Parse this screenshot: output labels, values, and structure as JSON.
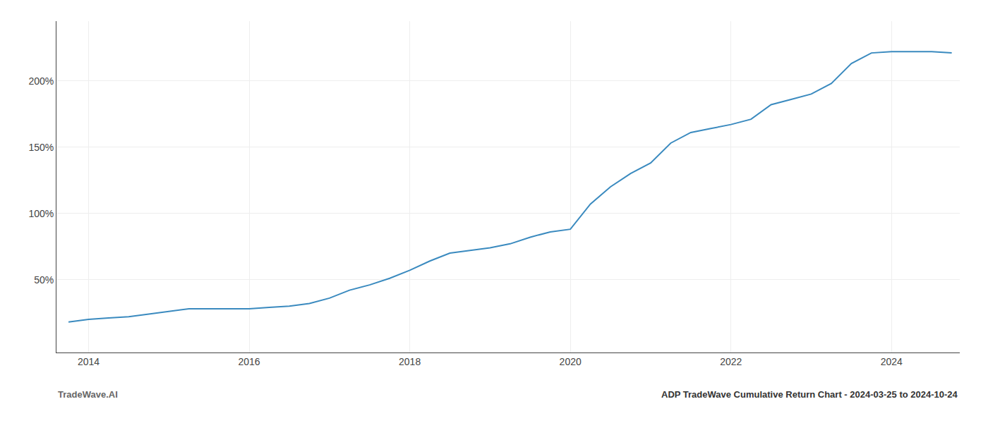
{
  "chart_data": {
    "type": "line",
    "title": "ADP TradeWave Cumulative Return Chart - 2024-03-25 to 2024-10-24",
    "annotations": [
      "TradeWave.AI"
    ],
    "color": "#3a8abf",
    "grid": true,
    "x": [
      2013.75,
      2014.0,
      2014.25,
      2014.5,
      2014.75,
      2015.0,
      2015.25,
      2015.5,
      2015.75,
      2016.0,
      2016.25,
      2016.5,
      2016.75,
      2017.0,
      2017.25,
      2017.5,
      2017.75,
      2018.0,
      2018.25,
      2018.5,
      2018.75,
      2019.0,
      2019.25,
      2019.5,
      2019.75,
      2020.0,
      2020.25,
      2020.5,
      2020.75,
      2021.0,
      2021.25,
      2021.5,
      2021.75,
      2022.0,
      2022.25,
      2022.5,
      2022.75,
      2023.0,
      2023.25,
      2023.5,
      2023.75,
      2024.0,
      2024.25,
      2024.5,
      2024.75
    ],
    "values": [
      18,
      20,
      21,
      22,
      24,
      26,
      28,
      28,
      28,
      28,
      29,
      30,
      32,
      36,
      42,
      46,
      51,
      57,
      64,
      70,
      72,
      74,
      77,
      82,
      86,
      88,
      107,
      120,
      130,
      138,
      153,
      161,
      164,
      167,
      171,
      182,
      186,
      190,
      198,
      213,
      221,
      222,
      222,
      222,
      221
    ],
    "xlim": [
      2013.6,
      2024.85
    ],
    "xticks": [
      2014,
      2016,
      2018,
      2020,
      2022,
      2024
    ],
    "ylim": [
      -5,
      245
    ],
    "yticks": [
      {
        "value": 50,
        "label": "50%"
      },
      {
        "value": 100,
        "label": "100%"
      },
      {
        "value": 150,
        "label": "150%"
      },
      {
        "value": 200,
        "label": "200%"
      }
    ]
  }
}
